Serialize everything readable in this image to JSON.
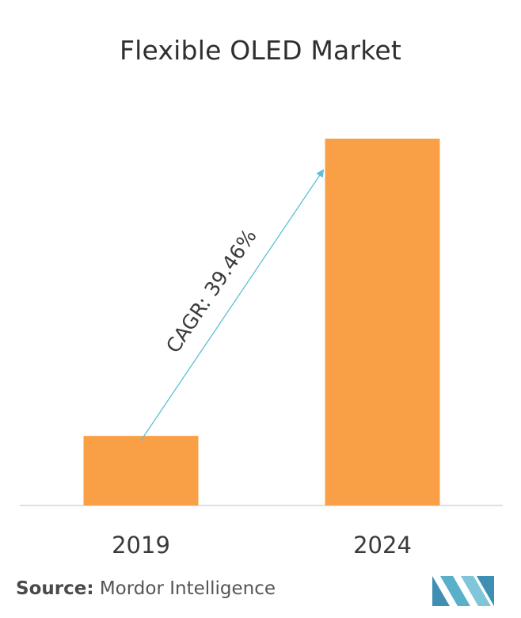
{
  "title": "Flexible OLED Market",
  "chart_data": {
    "type": "bar",
    "categories": [
      "2019",
      "2024"
    ],
    "values": [
      1,
      5.27
    ],
    "ylim": [
      0,
      5.27
    ],
    "grid": false,
    "annotation": "CAGR: 39.46%"
  },
  "colors": {
    "bar": "#F9A046",
    "arrow": "#5BC0D8",
    "axis": "#D6D6D6",
    "logo": "#5AAFC9"
  },
  "source": {
    "label": "Source:",
    "text": "Mordor Intelligence"
  },
  "logo_icon": "mordor-intelligence-logo"
}
